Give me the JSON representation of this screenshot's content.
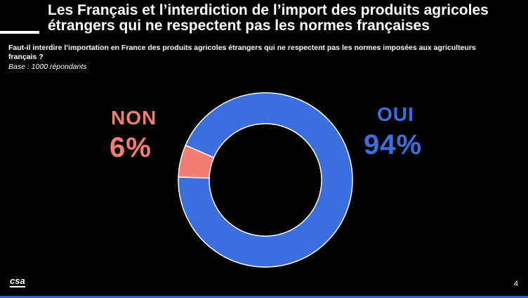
{
  "slide": {
    "title": "Les Français et l’interdiction de l’import des produits agricoles étrangers qui ne respectent pas les normes françaises",
    "question": "Faut-il interdire l’importation en France des produits agricoles étrangers qui ne respectent pas les normes imposées aux agriculteurs français ?",
    "base": "Base : 1000 répondants",
    "logo": "csa",
    "page_number": "4"
  },
  "colors": {
    "oui": "#3b6ee0",
    "non": "#f47d73",
    "background": "#000000"
  },
  "chart_data": {
    "type": "pie",
    "donut": true,
    "categories": [
      "OUI",
      "NON"
    ],
    "values": [
      94,
      6
    ],
    "labels": [
      {
        "name": "OUI",
        "value": "94%"
      },
      {
        "name": "NON",
        "value": "6%"
      }
    ]
  }
}
